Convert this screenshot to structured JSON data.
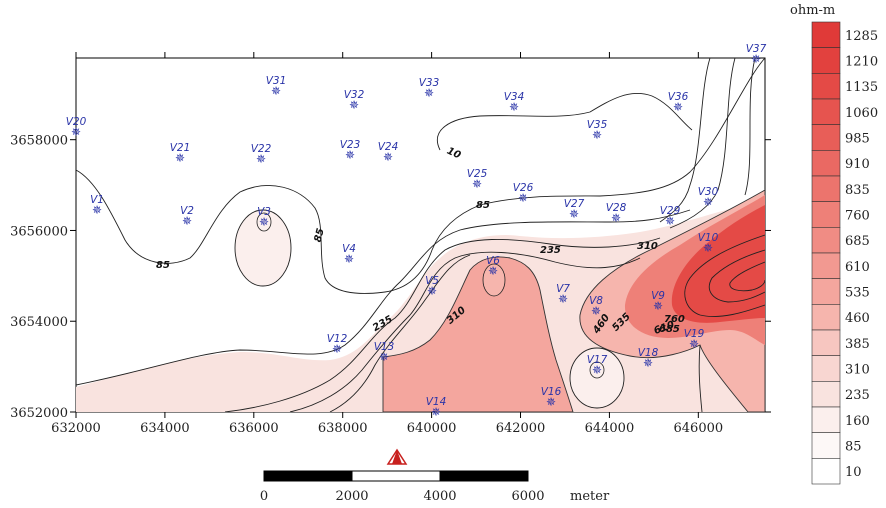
{
  "map": {
    "x_ticks": [
      "632000",
      "634000",
      "636000",
      "638000",
      "640000",
      "642000",
      "644000",
      "646000"
    ],
    "y_ticks": [
      "3652000",
      "3654000",
      "3656000",
      "3658000"
    ],
    "contour_labels": [
      "85",
      "85",
      "85",
      "10",
      "235",
      "310",
      "310",
      "235",
      "460",
      "535",
      "610",
      "760",
      "685"
    ],
    "stations": [
      {
        "id": "V1"
      },
      {
        "id": "V2"
      },
      {
        "id": "V3"
      },
      {
        "id": "V4"
      },
      {
        "id": "V5"
      },
      {
        "id": "V6"
      },
      {
        "id": "V7"
      },
      {
        "id": "V8"
      },
      {
        "id": "V9"
      },
      {
        "id": "V10"
      },
      {
        "id": "V12"
      },
      {
        "id": "V13"
      },
      {
        "id": "V14"
      },
      {
        "id": "V16"
      },
      {
        "id": "V17"
      },
      {
        "id": "V18"
      },
      {
        "id": "V19"
      },
      {
        "id": "V20"
      },
      {
        "id": "V21"
      },
      {
        "id": "V22"
      },
      {
        "id": "V23"
      },
      {
        "id": "V24"
      },
      {
        "id": "V25"
      },
      {
        "id": "V26"
      },
      {
        "id": "V27"
      },
      {
        "id": "V28"
      },
      {
        "id": "V29"
      },
      {
        "id": "V30"
      },
      {
        "id": "V31"
      },
      {
        "id": "V32"
      },
      {
        "id": "V33"
      },
      {
        "id": "V34"
      },
      {
        "id": "V35"
      },
      {
        "id": "V36"
      },
      {
        "id": "V37"
      }
    ]
  },
  "scale_bar": {
    "labels": [
      "0",
      "2000",
      "4000",
      "6000"
    ],
    "unit": "meter"
  },
  "legend": {
    "title": "ohm-m",
    "levels": [
      "1285",
      "1210",
      "1135",
      "1060",
      "985",
      "910",
      "835",
      "760",
      "685",
      "610",
      "535",
      "460",
      "385",
      "310",
      "235",
      "160",
      "85",
      "10"
    ],
    "colors": [
      "#e03a38",
      "#e2413e",
      "#e44a46",
      "#e6544f",
      "#e85e58",
      "#ea6963",
      "#ec746d",
      "#ee8078",
      "#f08c84",
      "#f29991",
      "#f4a69e",
      "#f6b5ad",
      "#f7c6c0",
      "#f8d6d1",
      "#f9e3df",
      "#fbefed",
      "#fdf8f7",
      "#ffffff"
    ]
  },
  "north_arrow": {
    "symbol": "north-arrow"
  }
}
